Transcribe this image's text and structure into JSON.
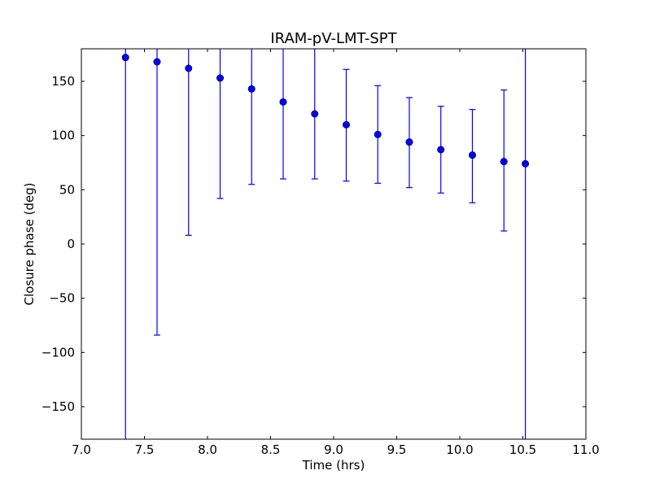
{
  "chart_data": {
    "type": "scatter",
    "title": "IRAM-pV-LMT-SPT",
    "xlabel": "Time (hrs)",
    "ylabel": "Closure phase (deg)",
    "xlim": [
      7.0,
      11.0
    ],
    "ylim": [
      -180,
      180
    ],
    "xticks": [
      7.0,
      7.5,
      8.0,
      8.5,
      9.0,
      9.5,
      10.0,
      10.5,
      11.0
    ],
    "xtick_labels": [
      "7.0",
      "7.5",
      "8.0",
      "8.5",
      "9.0",
      "9.5",
      "10.0",
      "10.5",
      "11.0"
    ],
    "yticks": [
      -150,
      -100,
      -50,
      0,
      50,
      100,
      150
    ],
    "ytick_labels": [
      "−150",
      "−100",
      "−50",
      "0",
      "50",
      "100",
      "150"
    ],
    "grid": false,
    "color": "#0000ff",
    "points": [
      {
        "x": 7.35,
        "y": 172,
        "low": -180,
        "high": 180
      },
      {
        "x": 7.6,
        "y": 168,
        "low": -84,
        "high": 180
      },
      {
        "x": 7.85,
        "y": 162,
        "low": 8,
        "high": 180
      },
      {
        "x": 8.1,
        "y": 153,
        "low": 42,
        "high": 180
      },
      {
        "x": 8.35,
        "y": 143,
        "low": 55,
        "high": 180
      },
      {
        "x": 8.6,
        "y": 131,
        "low": 60,
        "high": 180
      },
      {
        "x": 8.85,
        "y": 120,
        "low": 60,
        "high": 180
      },
      {
        "x": 9.1,
        "y": 110,
        "low": 58,
        "high": 161
      },
      {
        "x": 9.35,
        "y": 101,
        "low": 56,
        "high": 146
      },
      {
        "x": 9.6,
        "y": 94,
        "low": 52,
        "high": 135
      },
      {
        "x": 9.85,
        "y": 87,
        "low": 47,
        "high": 127
      },
      {
        "x": 10.1,
        "y": 82,
        "low": 38,
        "high": 124
      },
      {
        "x": 10.35,
        "y": 76,
        "low": 12,
        "high": 142
      },
      {
        "x": 10.52,
        "y": 74,
        "low": -180,
        "high": 180
      }
    ]
  }
}
